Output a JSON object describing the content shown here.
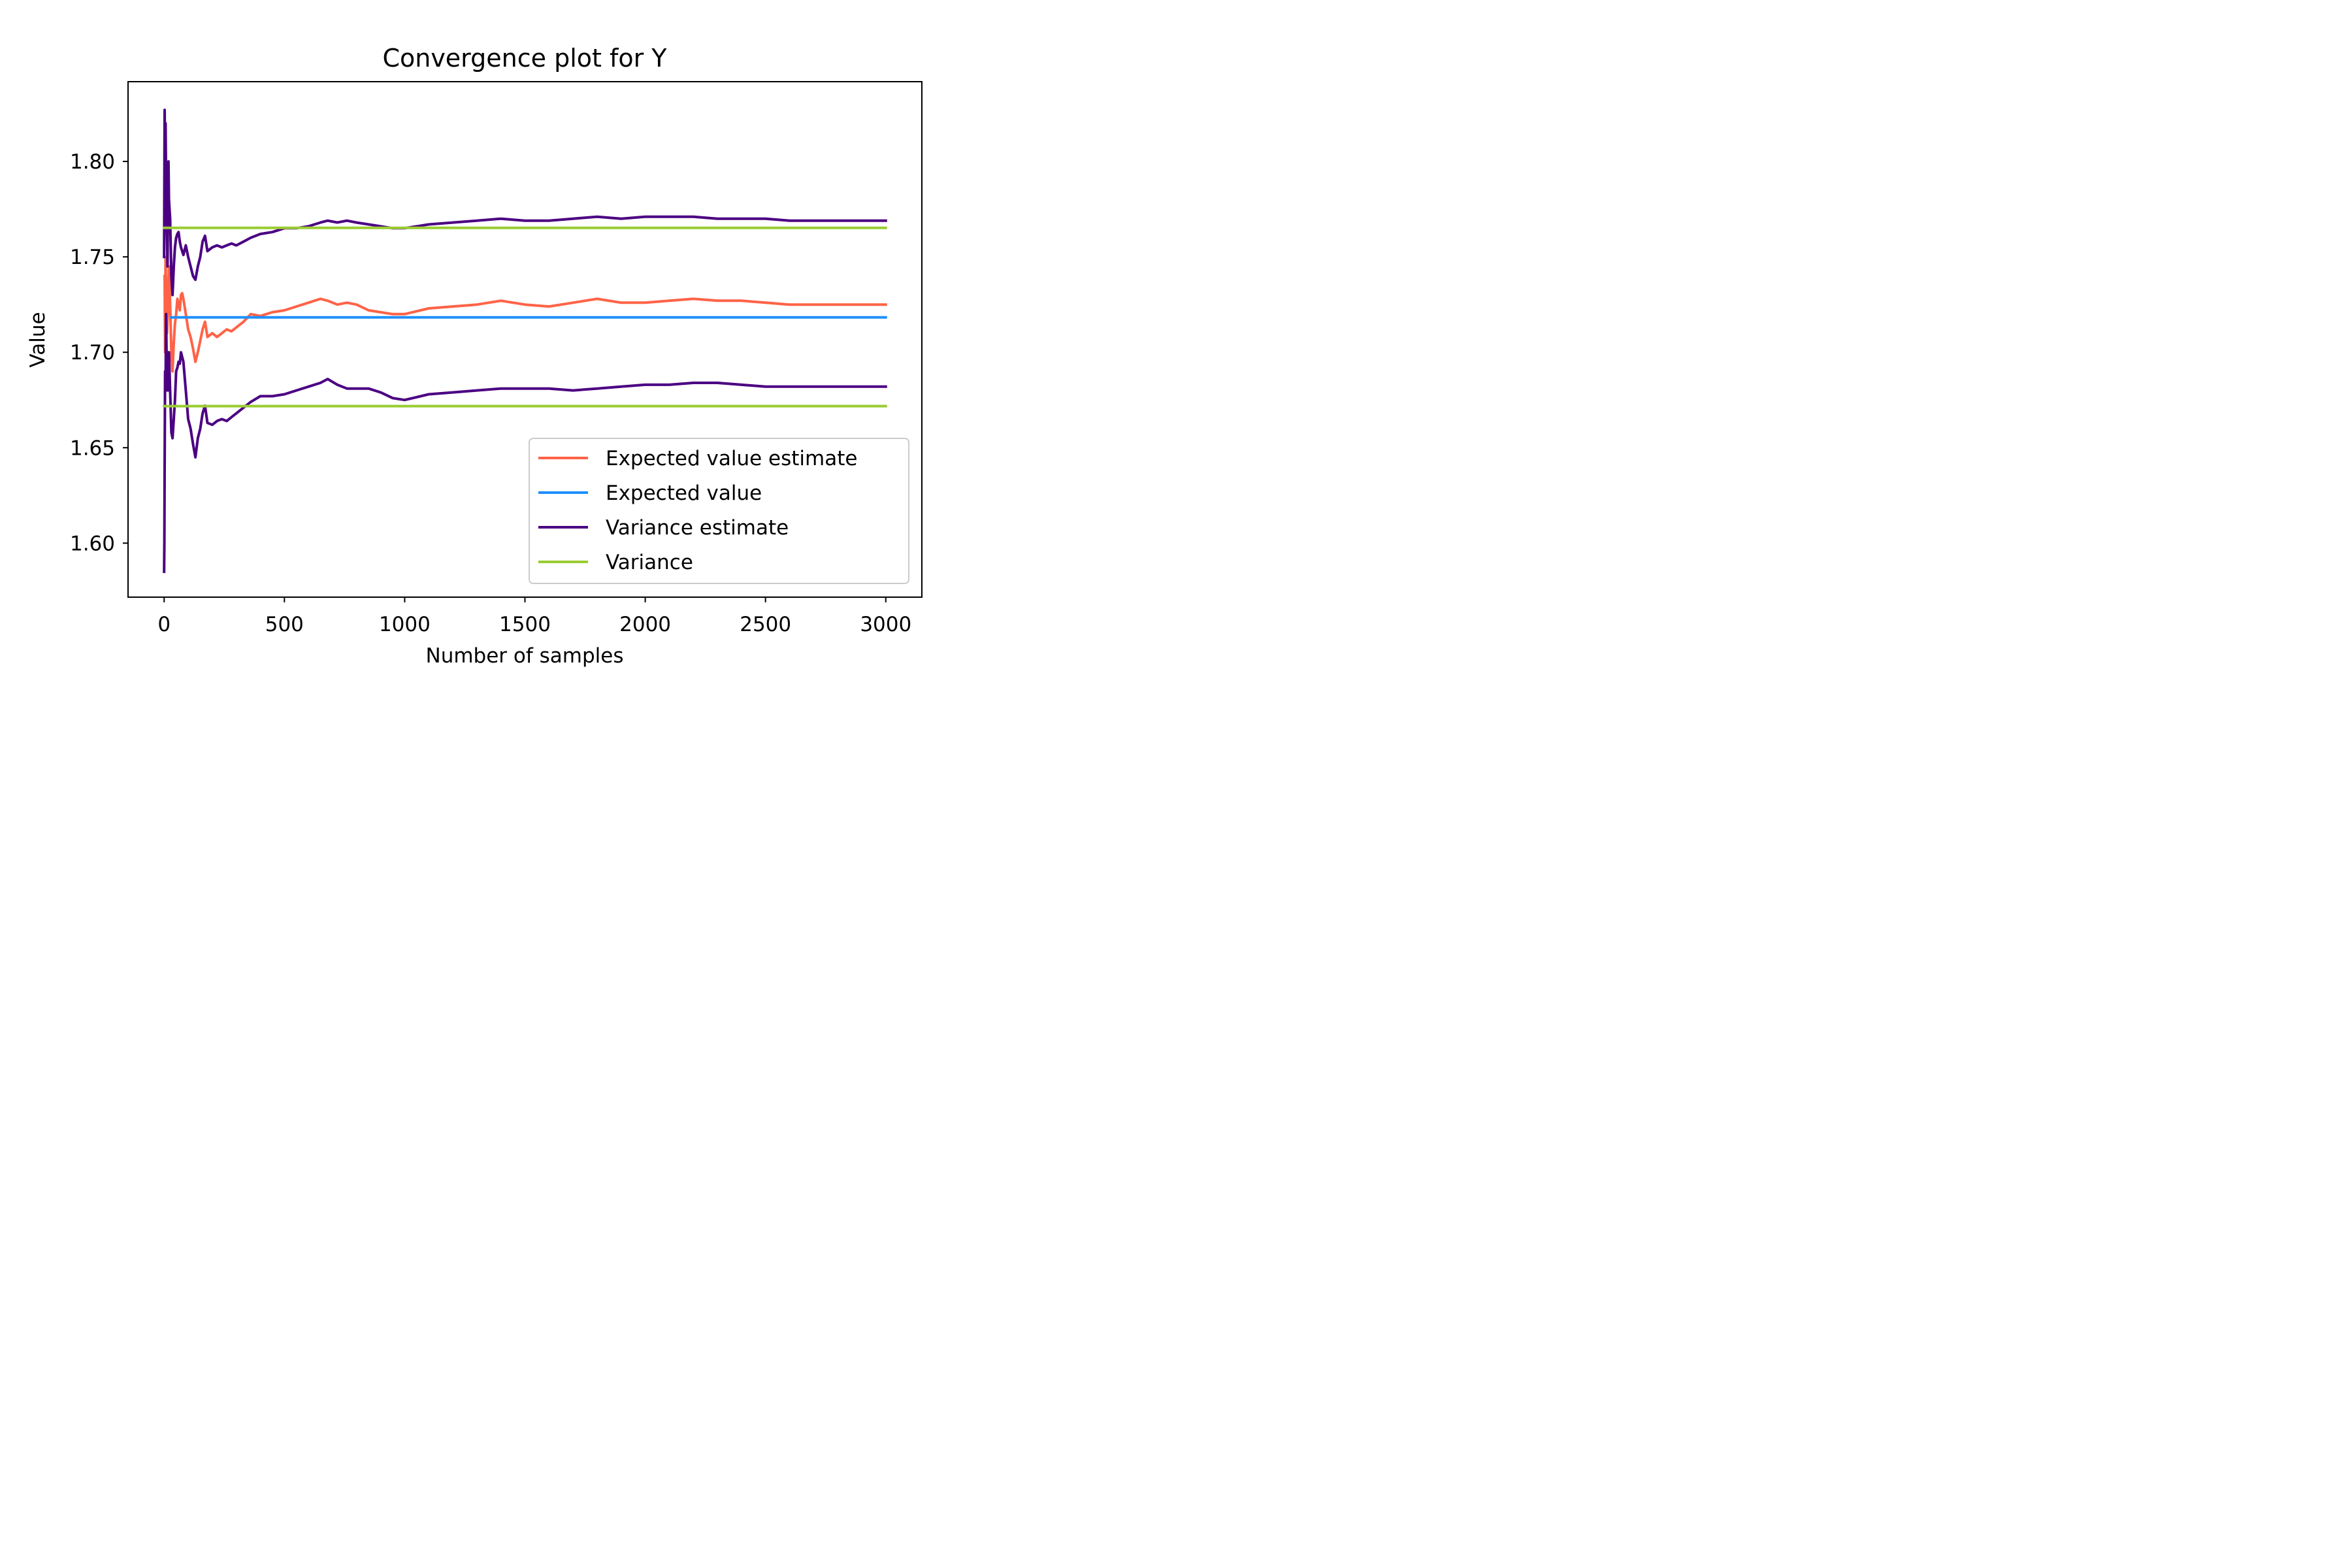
{
  "chart_data": {
    "type": "line",
    "title": "Convergence plot for Y",
    "xlabel": "Number of samples",
    "ylabel": "Value",
    "xlim": [
      -150,
      3150
    ],
    "ylim": [
      1.5717,
      1.8418
    ],
    "xticks": [
      0,
      500,
      1000,
      1500,
      2000,
      2500,
      3000
    ],
    "xtick_labels": [
      "0",
      "500",
      "1000",
      "1500",
      "2000",
      "2500",
      "3000"
    ],
    "yticks": [
      1.6,
      1.65,
      1.7,
      1.75,
      1.8
    ],
    "ytick_labels": [
      "1.60",
      "1.65",
      "1.70",
      "1.75",
      "1.80"
    ],
    "grid": false,
    "legend_position": "lower-right",
    "series": [
      {
        "name": "Expected value estimate",
        "color": "#FF6347",
        "x": [
          2,
          4,
          6,
          9,
          12,
          15,
          20,
          25,
          30,
          35,
          40,
          45,
          50,
          55,
          60,
          65,
          70,
          75,
          80,
          90,
          100,
          110,
          120,
          130,
          140,
          150,
          160,
          170,
          180,
          200,
          220,
          240,
          260,
          280,
          300,
          330,
          360,
          400,
          450,
          500,
          550,
          600,
          650,
          680,
          720,
          760,
          800,
          850,
          900,
          950,
          1000,
          1100,
          1200,
          1300,
          1400,
          1500,
          1600,
          1700,
          1800,
          1900,
          2000,
          2100,
          2200,
          2300,
          2400,
          2500,
          2600,
          2700,
          2800,
          2900,
          3000
        ],
        "y": [
          1.74,
          1.7,
          1.75,
          1.73,
          1.71,
          1.72,
          1.745,
          1.725,
          1.7,
          1.69,
          1.705,
          1.715,
          1.72,
          1.728,
          1.725,
          1.722,
          1.73,
          1.731,
          1.728,
          1.72,
          1.712,
          1.708,
          1.702,
          1.695,
          1.7,
          1.706,
          1.712,
          1.716,
          1.708,
          1.71,
          1.708,
          1.71,
          1.712,
          1.711,
          1.713,
          1.716,
          1.72,
          1.719,
          1.721,
          1.722,
          1.724,
          1.726,
          1.728,
          1.727,
          1.725,
          1.726,
          1.725,
          1.722,
          1.721,
          1.72,
          1.72,
          1.723,
          1.724,
          1.725,
          1.727,
          1.725,
          1.724,
          1.726,
          1.728,
          1.726,
          1.726,
          1.727,
          1.728,
          1.727,
          1.727,
          1.726,
          1.725,
          1.725,
          1.725,
          1.725,
          1.725
        ]
      },
      {
        "name": "Expected value",
        "color": "#1E90FF",
        "x": [
          30,
          3000
        ],
        "y": [
          1.7183,
          1.7183
        ]
      },
      {
        "name": "Variance estimate",
        "color": "#4B0082",
        "segments": [
          {
            "x": [
              0,
              2,
              4,
              6,
              8,
              10,
              12,
              14,
              16,
              18,
              20,
              25,
              30,
              35,
              40,
              45,
              50,
              55,
              60,
              65,
              70,
              80,
              90,
              100,
              110,
              120,
              130,
              140,
              150,
              160,
              170,
              180,
              200,
              220,
              240,
              260,
              280,
              300,
              330,
              360,
              400,
              450,
              500,
              550,
              600,
              650,
              680,
              720,
              760,
              800,
              850,
              900,
              950,
              1000,
              1100,
              1200,
              1300,
              1400,
              1500,
              1600,
              1700,
              1800,
              1900,
              2000,
              2100,
              2200,
              2300,
              2400,
              2500,
              2600,
              2700,
              2800,
              2900,
              3000
            ],
            "y": [
              1.75,
              1.827,
              1.8,
              1.82,
              1.79,
              1.77,
              1.76,
              1.745,
              1.775,
              1.8,
              1.78,
              1.77,
              1.74,
              1.73,
              1.745,
              1.755,
              1.76,
              1.762,
              1.763,
              1.758,
              1.755,
              1.751,
              1.756,
              1.75,
              1.745,
              1.74,
              1.738,
              1.745,
              1.75,
              1.758,
              1.761,
              1.753,
              1.755,
              1.756,
              1.755,
              1.756,
              1.757,
              1.756,
              1.758,
              1.76,
              1.762,
              1.763,
              1.765,
              1.765,
              1.766,
              1.768,
              1.769,
              1.768,
              1.769,
              1.768,
              1.767,
              1.766,
              1.765,
              1.765,
              1.767,
              1.768,
              1.769,
              1.77,
              1.769,
              1.769,
              1.77,
              1.771,
              1.77,
              1.771,
              1.771,
              1.771,
              1.77,
              1.77,
              1.77,
              1.769,
              1.769,
              1.769,
              1.769,
              1.769
            ]
          },
          {
            "x": [
              0,
              1,
              2,
              4,
              6,
              8,
              10,
              12,
              14,
              16,
              18,
              20,
              25,
              30,
              35,
              40,
              45,
              50,
              55,
              60,
              65,
              70,
              80,
              90,
              100,
              110,
              120,
              130,
              140,
              150,
              160,
              170,
              180,
              200,
              220,
              240,
              260,
              280,
              300,
              330,
              360,
              400,
              450,
              500,
              550,
              600,
              650,
              680,
              720,
              760,
              800,
              850,
              900,
              950,
              1000,
              1100,
              1200,
              1300,
              1400,
              1500,
              1600,
              1700,
              1800,
              1900,
              2000,
              2100,
              2200,
              2300,
              2400,
              2500,
              2600,
              2700,
              2800,
              2900,
              3000
            ],
            "y": [
              1.585,
              1.6,
              1.64,
              1.69,
              1.68,
              1.72,
              1.7,
              1.69,
              1.68,
              1.68,
              1.7,
              1.7,
              1.68,
              1.658,
              1.655,
              1.665,
              1.675,
              1.69,
              1.692,
              1.695,
              1.694,
              1.7,
              1.695,
              1.68,
              1.665,
              1.66,
              1.652,
              1.645,
              1.655,
              1.66,
              1.668,
              1.672,
              1.663,
              1.662,
              1.664,
              1.665,
              1.664,
              1.666,
              1.668,
              1.671,
              1.674,
              1.677,
              1.677,
              1.678,
              1.68,
              1.682,
              1.684,
              1.686,
              1.683,
              1.681,
              1.681,
              1.681,
              1.679,
              1.676,
              1.675,
              1.678,
              1.679,
              1.68,
              1.681,
              1.681,
              1.681,
              1.68,
              1.681,
              1.682,
              1.683,
              1.683,
              1.684,
              1.684,
              1.683,
              1.682,
              1.682,
              1.682,
              1.682,
              1.682,
              1.682
            ]
          }
        ]
      },
      {
        "name": "Variance",
        "color": "#9ACD32",
        "segments": [
          {
            "x": [
              0,
              3000
            ],
            "y": [
              1.7652,
              1.7652
            ]
          },
          {
            "x": [
              0,
              3000
            ],
            "y": [
              1.6718,
              1.6718
            ]
          }
        ]
      }
    ]
  }
}
